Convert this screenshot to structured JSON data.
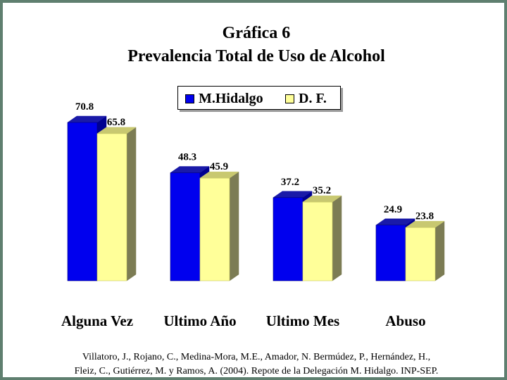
{
  "chart_data": {
    "type": "bar",
    "title": "Gráfica 6",
    "subtitle": "Prevalencia Total de Uso de Alcohol",
    "categories": [
      "Alguna Vez",
      "Ultimo Año",
      "Ultimo Mes",
      "Abuso"
    ],
    "series": [
      {
        "name": "M.Hidalgo",
        "values": [
          70.8,
          48.3,
          37.2,
          24.9
        ]
      },
      {
        "name": "D. F.",
        "values": [
          65.8,
          45.9,
          35.2,
          23.8
        ]
      }
    ],
    "value_labels": [
      [
        "70.8",
        "48.3",
        "37.2",
        "24.9"
      ],
      [
        "65.8",
        "45.9",
        "35.2",
        "23.8"
      ]
    ],
    "ylim": [
      0,
      80
    ],
    "grid": false,
    "legend_position": "top-center",
    "bar_style": "3d",
    "colors": {
      "series_1": "#0000ee",
      "series_1_top": "#1a1aa8",
      "series_1_side": "#000090",
      "series_2": "#ffff99",
      "series_2_top": "#c8c870",
      "series_2_side": "#7c7c54"
    }
  },
  "source": {
    "line1": "Villatoro, J., Rojano, C., Medina-Mora, M.E., Amador, N. Bermúdez, P., Hernández, H.,",
    "line2": "Fleiz, C., Gutiérrez, M. y Ramos, A. (2004). Repote de la Delegación M. Hidalgo. INP-SEP."
  }
}
